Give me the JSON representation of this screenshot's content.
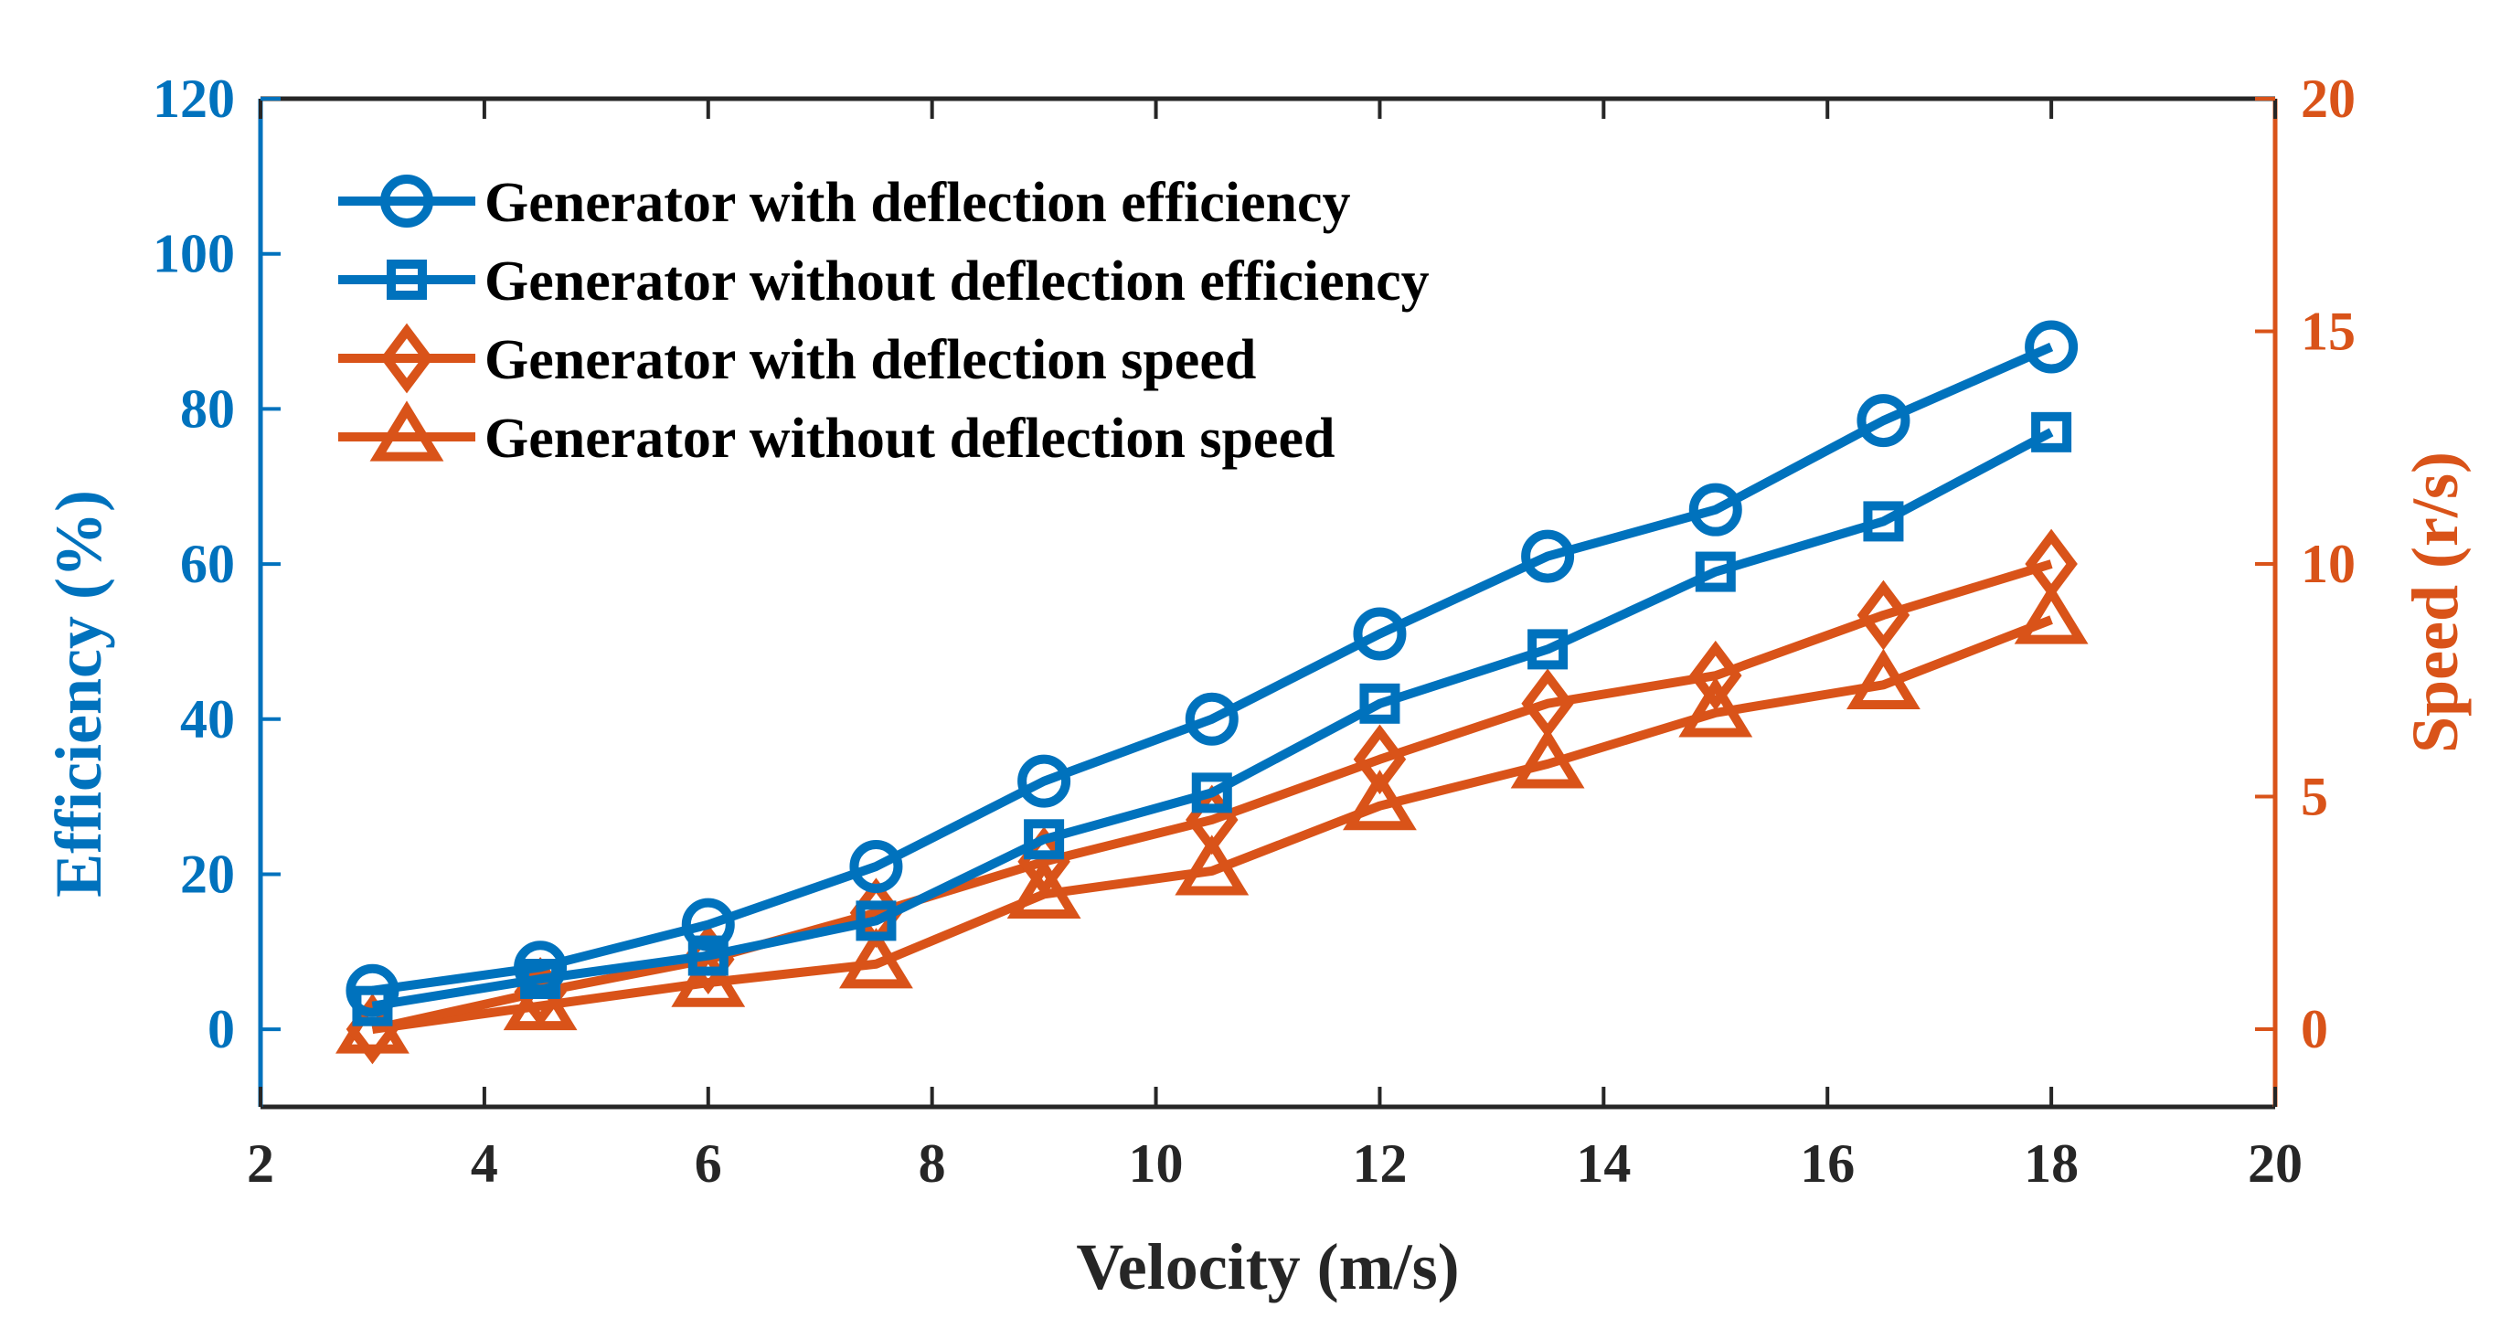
{
  "chart_data": {
    "type": "line",
    "xlabel": "Velocity (m/s)",
    "ylabel_left": "Efficiency (%)",
    "ylabel_right": "Speed (r/s)",
    "xlim": [
      2,
      20
    ],
    "ylim_left": [
      -10,
      120
    ],
    "ylim_right": [
      -1.67,
      20
    ],
    "x_ticks": [
      2,
      4,
      6,
      8,
      10,
      12,
      14,
      16,
      18,
      20
    ],
    "y_left_ticks": [
      0,
      20,
      40,
      60,
      80,
      100,
      120
    ],
    "y_right_ticks": [
      0,
      5,
      10,
      15,
      20
    ],
    "x": [
      3,
      4.5,
      6,
      7.5,
      9,
      10.5,
      12,
      13.5,
      15,
      16.5,
      18
    ],
    "series": [
      {
        "name": "Generator with deflection efficiency",
        "axis": "left",
        "marker": "circle",
        "color": "#0072BD",
        "values": [
          5,
          8,
          13.5,
          21,
          32,
          40,
          51,
          61,
          67,
          78.5,
          88
        ]
      },
      {
        "name": "Generator without deflection efficiency",
        "axis": "left",
        "marker": "square",
        "color": "#0072BD",
        "values": [
          3,
          6.5,
          9.5,
          14,
          24.5,
          30.5,
          42,
          49,
          59,
          65.5,
          77
        ]
      },
      {
        "name": "Generator with deflection speed",
        "axis": "right",
        "marker": "diamond",
        "color": "#D95319",
        "values": [
          0,
          0.8,
          1.5,
          2.5,
          3.6,
          4.5,
          5.8,
          7,
          7.6,
          8.9,
          10
        ]
      },
      {
        "name": "Generator without deflection speed",
        "axis": "right",
        "marker": "triangle",
        "color": "#D95319",
        "values": [
          0,
          0.5,
          1,
          1.4,
          2.9,
          3.4,
          4.8,
          5.7,
          6.8,
          7.4,
          8.8
        ]
      }
    ]
  }
}
